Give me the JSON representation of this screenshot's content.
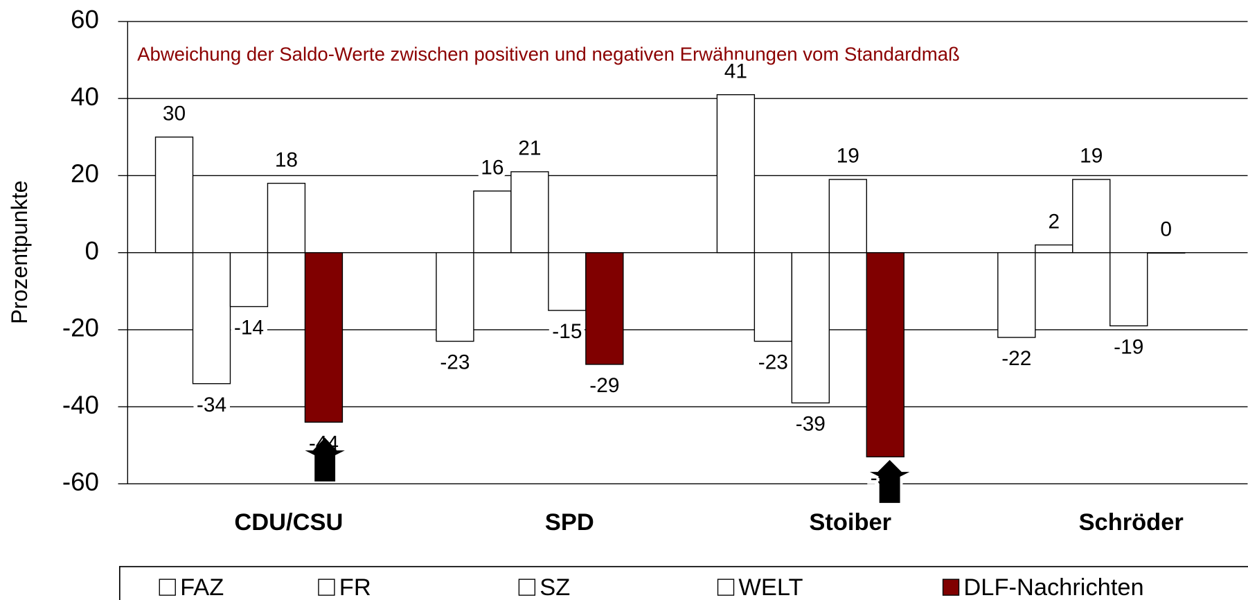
{
  "chart_data": {
    "type": "bar",
    "title": "Abweichung der Saldo-Werte zwischen positiven und negativen Erwähnungen vom Standardmaß",
    "y_label": "Prozentpunkte",
    "categories": [
      "CDU/CSU",
      "SPD",
      "Stoiber",
      "Schröder"
    ],
    "series": [
      {
        "name": "FAZ",
        "color": "#ffffff",
        "values": [
          30,
          -23,
          41,
          -22
        ]
      },
      {
        "name": "FR",
        "color": "#ffffff",
        "values": [
          -34,
          16,
          -23,
          2
        ]
      },
      {
        "name": "SZ",
        "color": "#ffffff",
        "values": [
          -14,
          21,
          -39,
          19
        ]
      },
      {
        "name": "WELT",
        "color": "#ffffff",
        "values": [
          18,
          -15,
          19,
          -19
        ]
      },
      {
        "name": "DLF-Nachrichten",
        "color": "#800000",
        "values": [
          -44,
          -29,
          -53,
          0
        ]
      }
    ],
    "ylim": [
      -60,
      60
    ],
    "yticks": [
      -60,
      -40,
      -20,
      0,
      20,
      40,
      60
    ],
    "grid": true,
    "legend": "bottom"
  }
}
